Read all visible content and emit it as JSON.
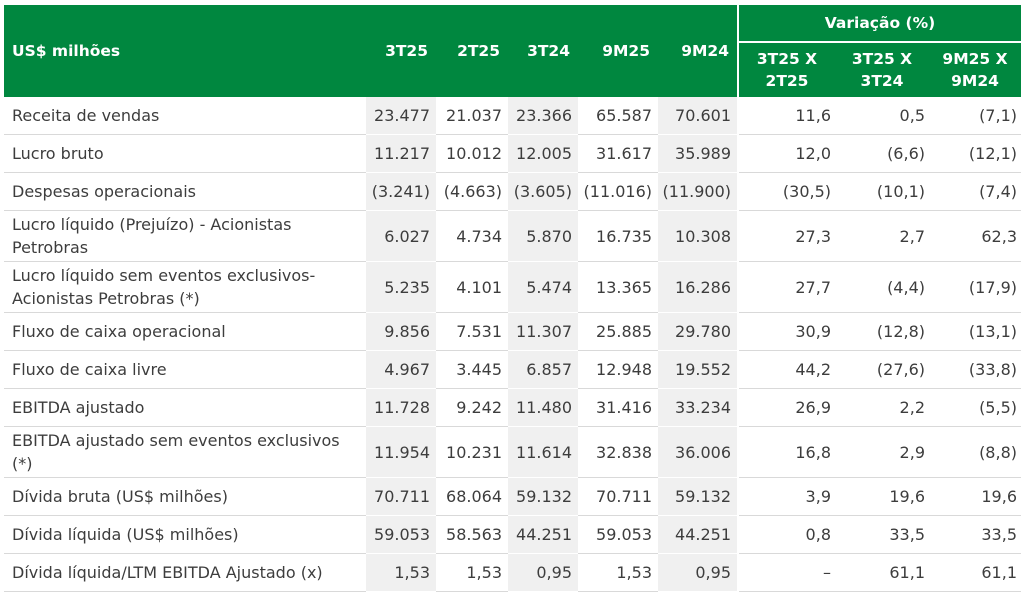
{
  "table": {
    "unit_label": "US$ milhões",
    "variation_title": "Variação (%)",
    "columns": [
      "3T25",
      "2T25",
      "3T24",
      "9M25",
      "9M24"
    ],
    "variation_columns": [
      [
        "3T25 X",
        "2T25"
      ],
      [
        "3T25 X",
        "3T24"
      ],
      [
        "9M25 X",
        "9M24"
      ]
    ],
    "rows": [
      {
        "label": "Receita de vendas",
        "values": [
          "23.477",
          "21.037",
          "23.366",
          "65.587",
          "70.601"
        ],
        "variations": [
          "11,6",
          "0,5",
          "(7,1)"
        ]
      },
      {
        "label": "Lucro bruto",
        "values": [
          "11.217",
          "10.012",
          "12.005",
          "31.617",
          "35.989"
        ],
        "variations": [
          "12,0",
          "(6,6)",
          "(12,1)"
        ]
      },
      {
        "label": "Despesas operacionais",
        "values": [
          "(3.241)",
          "(4.663)",
          "(3.605)",
          "(11.016)",
          "(11.900)"
        ],
        "variations": [
          "(30,5)",
          "(10,1)",
          "(7,4)"
        ]
      },
      {
        "label_lines": [
          "Lucro líquido (Prejuízo) - Acionistas",
          "Petrobras"
        ],
        "values": [
          "6.027",
          "4.734",
          "5.870",
          "16.735",
          "10.308"
        ],
        "variations": [
          "27,3",
          "2,7",
          "62,3"
        ]
      },
      {
        "label_lines": [
          "Lucro líquido sem eventos exclusivos-",
          "Acionistas Petrobras (*)"
        ],
        "values": [
          "5.235",
          "4.101",
          "5.474",
          "13.365",
          "16.286"
        ],
        "variations": [
          "27,7",
          "(4,4)",
          "(17,9)"
        ]
      },
      {
        "label": "Fluxo de caixa operacional",
        "values": [
          "9.856",
          "7.531",
          "11.307",
          "25.885",
          "29.780"
        ],
        "variations": [
          "30,9",
          "(12,8)",
          "(13,1)"
        ]
      },
      {
        "label": "Fluxo de caixa livre",
        "values": [
          "4.967",
          "3.445",
          "6.857",
          "12.948",
          "19.552"
        ],
        "variations": [
          "44,2",
          "(27,6)",
          "(33,8)"
        ]
      },
      {
        "label": "EBITDA ajustado",
        "values": [
          "11.728",
          "9.242",
          "11.480",
          "31.416",
          "33.234"
        ],
        "variations": [
          "26,9",
          "2,2",
          "(5,5)"
        ]
      },
      {
        "label_lines": [
          "EBITDA ajustado sem eventos exclusivos",
          "(*)"
        ],
        "values": [
          "11.954",
          "10.231",
          "11.614",
          "32.838",
          "36.006"
        ],
        "variations": [
          "16,8",
          "2,9",
          "(8,8)"
        ]
      },
      {
        "label": "Dívida bruta (US$ milhões)",
        "values": [
          "70.711",
          "68.064",
          "59.132",
          "70.711",
          "59.132"
        ],
        "variations": [
          "3,9",
          "19,6",
          "19,6"
        ]
      },
      {
        "label": "Dívida líquida (US$ milhões)",
        "values": [
          "59.053",
          "58.563",
          "44.251",
          "59.053",
          "44.251"
        ],
        "variations": [
          "0,8",
          "33,5",
          "33,5"
        ]
      },
      {
        "label": "Dívida líquida/LTM EBITDA Ajustado (x)",
        "values": [
          "1,53",
          "1,53",
          "0,95",
          "1,53",
          "0,95"
        ],
        "variations": [
          "–",
          "61,1",
          "61,1"
        ]
      }
    ]
  },
  "colors": {
    "header_green": "#00873f",
    "shaded_column": "#f0f0f0",
    "text": "#3d3d3d"
  }
}
